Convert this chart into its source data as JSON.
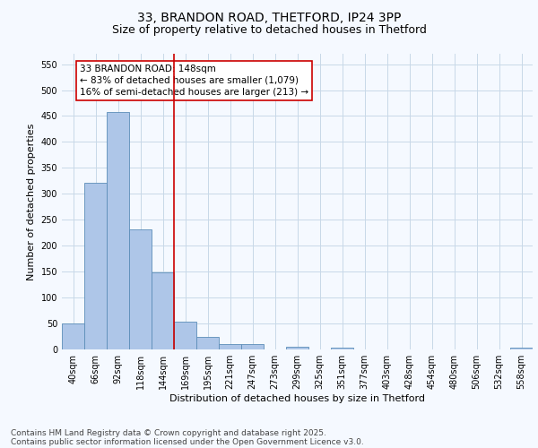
{
  "title1": "33, BRANDON ROAD, THETFORD, IP24 3PP",
  "title2": "Size of property relative to detached houses in Thetford",
  "xlabel": "Distribution of detached houses by size in Thetford",
  "ylabel": "Number of detached properties",
  "bar_labels": [
    "40sqm",
    "66sqm",
    "92sqm",
    "118sqm",
    "144sqm",
    "169sqm",
    "195sqm",
    "221sqm",
    "247sqm",
    "273sqm",
    "299sqm",
    "325sqm",
    "351sqm",
    "377sqm",
    "403sqm",
    "428sqm",
    "454sqm",
    "480sqm",
    "506sqm",
    "532sqm",
    "558sqm"
  ],
  "bar_values": [
    50,
    321,
    457,
    232,
    149,
    54,
    25,
    11,
    10,
    0,
    5,
    0,
    4,
    0,
    0,
    0,
    0,
    0,
    0,
    0,
    4
  ],
  "bar_color": "#aec6e8",
  "bar_edge_color": "#5b8db8",
  "vline_color": "#cc0000",
  "annotation_text": "33 BRANDON ROAD: 148sqm\n← 83% of detached houses are smaller (1,079)\n16% of semi-detached houses are larger (213) →",
  "annotation_box_color": "#ffffff",
  "annotation_box_edge": "#cc0000",
  "ylim": [
    0,
    570
  ],
  "yticks": [
    0,
    50,
    100,
    150,
    200,
    250,
    300,
    350,
    400,
    450,
    500,
    550
  ],
  "bg_color": "#f5f9ff",
  "grid_color": "#c8d8e8",
  "footer1": "Contains HM Land Registry data © Crown copyright and database right 2025.",
  "footer2": "Contains public sector information licensed under the Open Government Licence v3.0.",
  "title_fontsize": 10,
  "subtitle_fontsize": 9,
  "axis_label_fontsize": 8,
  "tick_fontsize": 7,
  "annotation_fontsize": 7.5,
  "footer_fontsize": 6.5
}
